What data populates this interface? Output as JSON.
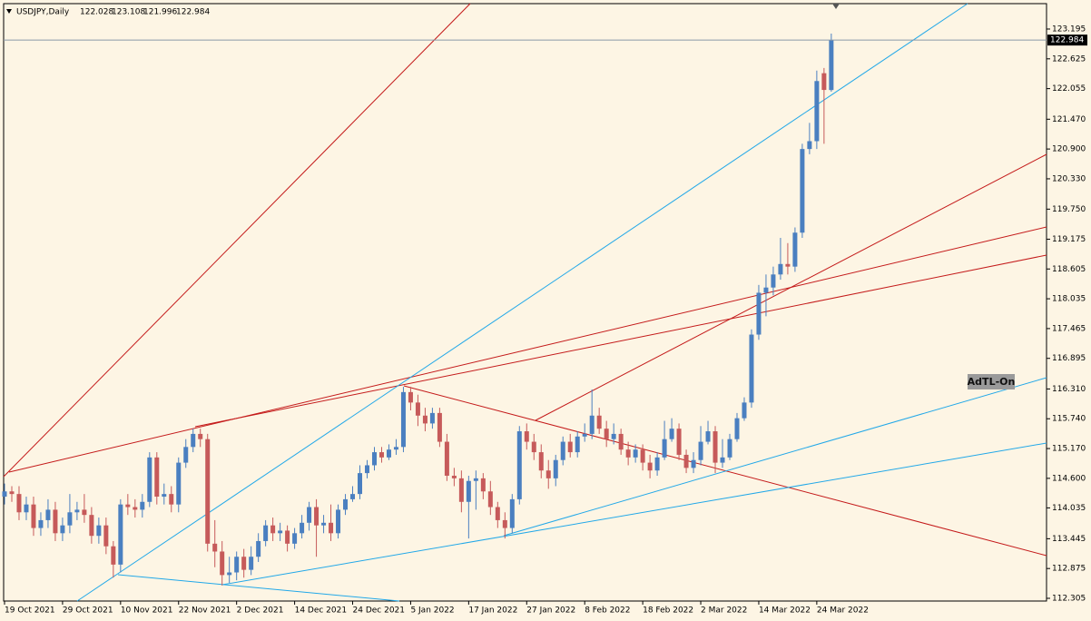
{
  "chart_data": {
    "type": "candlestick",
    "title": "USDJPY,Daily",
    "header_ohlc": [
      122.028,
      123.108,
      121.996,
      122.984
    ],
    "current_price": 122.984,
    "annotation": "AdTL-On",
    "up_color": "#4a7fc0",
    "down_color": "#c65a5a",
    "ylim": [
      112.253,
      123.681
    ],
    "yticks": [
      {
        "value": 123.195,
        "label": "123.195"
      },
      {
        "value": 122.625,
        "label": "122.625"
      },
      {
        "value": 122.055,
        "label": "122.055"
      },
      {
        "value": 121.47,
        "label": "121.470"
      },
      {
        "value": 120.9,
        "label": "120.900"
      },
      {
        "value": 120.33,
        "label": "120.330"
      },
      {
        "value": 119.75,
        "label": "119.750"
      },
      {
        "value": 119.175,
        "label": "119.175"
      },
      {
        "value": 118.605,
        "label": "118.605"
      },
      {
        "value": 118.035,
        "label": "118.035"
      },
      {
        "value": 117.465,
        "label": "117.465"
      },
      {
        "value": 116.895,
        "label": "116.895"
      },
      {
        "value": 116.31,
        "label": "116.310"
      },
      {
        "value": 115.74,
        "label": "115.740"
      },
      {
        "value": 115.17,
        "label": "115.170"
      },
      {
        "value": 114.6,
        "label": "114.600"
      },
      {
        "value": 114.035,
        "label": "114.035"
      },
      {
        "value": 113.445,
        "label": "113.445"
      },
      {
        "value": 112.875,
        "label": "112.875"
      },
      {
        "value": 112.305,
        "label": "112.305"
      }
    ],
    "categories": [
      "19 Oct 2021",
      null,
      null,
      null,
      null,
      null,
      null,
      null,
      "29 Oct 2021",
      null,
      null,
      null,
      null,
      null,
      null,
      null,
      "10 Nov 2021",
      null,
      null,
      null,
      null,
      null,
      null,
      null,
      "22 Nov 2021",
      null,
      null,
      null,
      null,
      null,
      null,
      null,
      "2 Dec 2021",
      null,
      null,
      null,
      null,
      null,
      null,
      null,
      "14 Dec 2021",
      null,
      null,
      null,
      null,
      null,
      null,
      null,
      "24 Dec 2021",
      null,
      null,
      null,
      null,
      null,
      null,
      null,
      "5 Jan 2022",
      null,
      null,
      null,
      null,
      null,
      null,
      null,
      "17 Jan 2022",
      null,
      null,
      null,
      null,
      null,
      null,
      null,
      "27 Jan 2022",
      null,
      null,
      null,
      null,
      null,
      null,
      null,
      "8 Feb 2022",
      null,
      null,
      null,
      null,
      null,
      null,
      null,
      "18 Feb 2022",
      null,
      null,
      null,
      null,
      null,
      null,
      null,
      "2 Mar 2022",
      null,
      null,
      null,
      null,
      null,
      null,
      null,
      "14 Mar 2022",
      null,
      null,
      null,
      null,
      null,
      null,
      null,
      "24 Mar 2022",
      null,
      null
    ],
    "open": [
      114.25,
      114.35,
      114.3,
      113.95,
      114.1,
      113.65,
      113.8,
      114.0,
      113.55,
      113.7,
      113.95,
      114.0,
      113.9,
      113.5,
      113.7,
      113.3,
      112.95,
      114.1,
      114.05,
      114.0,
      114.15,
      115.0,
      114.25,
      114.3,
      114.1,
      114.9,
      115.2,
      115.45,
      115.35,
      113.35,
      113.2,
      112.75,
      112.8,
      113.1,
      112.85,
      113.1,
      113.4,
      113.7,
      113.55,
      113.6,
      113.35,
      113.55,
      113.75,
      114.05,
      113.7,
      113.75,
      113.55,
      114.0,
      114.2,
      114.3,
      114.7,
      114.85,
      115.1,
      115.0,
      115.15,
      115.2,
      116.25,
      116.05,
      115.8,
      115.65,
      115.85,
      115.3,
      114.65,
      114.6,
      114.15,
      114.55,
      114.6,
      114.35,
      114.05,
      113.8,
      113.65,
      114.2,
      115.5,
      115.3,
      115.1,
      114.75,
      114.6,
      114.95,
      115.3,
      115.1,
      115.4,
      115.45,
      115.8,
      115.55,
      115.35,
      115.45,
      115.15,
      115.0,
      115.15,
      114.9,
      114.75,
      115.0,
      115.35,
      115.55,
      115.05,
      114.8,
      114.95,
      115.3,
      115.5,
      114.9,
      115.0,
      115.35,
      115.75,
      116.05,
      117.35,
      118.15,
      118.25,
      118.5,
      118.7,
      118.65,
      119.3,
      120.9,
      121.05,
      122.35,
      122.028
    ],
    "high": [
      114.5,
      114.45,
      114.45,
      114.25,
      114.25,
      113.95,
      114.2,
      114.15,
      113.85,
      114.3,
      114.15,
      114.3,
      114.05,
      113.85,
      113.85,
      113.4,
      114.2,
      114.3,
      114.2,
      114.3,
      115.1,
      115.1,
      114.5,
      114.45,
      115.0,
      115.35,
      115.55,
      115.55,
      115.45,
      113.8,
      113.4,
      113.1,
      113.2,
      113.25,
      113.3,
      113.55,
      113.8,
      113.85,
      113.75,
      113.7,
      113.65,
      113.9,
      114.15,
      114.2,
      113.9,
      114.1,
      114.1,
      114.3,
      114.45,
      114.85,
      114.95,
      115.2,
      115.2,
      115.25,
      115.35,
      116.35,
      116.35,
      116.2,
      115.95,
      115.95,
      115.95,
      115.45,
      114.8,
      114.75,
      114.65,
      114.75,
      114.7,
      114.55,
      114.15,
      113.95,
      114.3,
      115.6,
      115.65,
      115.45,
      115.25,
      114.95,
      115.05,
      115.4,
      115.45,
      115.5,
      115.65,
      116.3,
      115.95,
      115.7,
      115.65,
      115.55,
      115.3,
      115.25,
      115.25,
      115.05,
      115.1,
      115.7,
      115.75,
      115.65,
      115.15,
      115.1,
      115.6,
      115.7,
      115.6,
      115.35,
      115.45,
      115.85,
      116.15,
      117.45,
      118.3,
      118.5,
      118.65,
      119.2,
      119.1,
      119.4,
      121.0,
      121.4,
      122.4,
      122.45,
      123.108
    ],
    "low": [
      114.1,
      114.15,
      113.8,
      113.8,
      113.5,
      113.5,
      113.65,
      113.4,
      113.4,
      113.55,
      113.8,
      113.75,
      113.35,
      113.35,
      113.15,
      112.7,
      112.8,
      113.9,
      113.85,
      113.85,
      114.05,
      114.1,
      114.1,
      113.95,
      113.95,
      114.8,
      115.1,
      115.2,
      113.2,
      112.9,
      112.55,
      112.6,
      112.65,
      112.7,
      112.75,
      113.0,
      113.3,
      113.4,
      113.4,
      113.2,
      113.25,
      113.45,
      113.6,
      113.1,
      113.55,
      113.4,
      113.45,
      113.9,
      114.15,
      114.2,
      114.6,
      114.75,
      114.9,
      114.95,
      115.05,
      115.1,
      115.9,
      115.6,
      115.5,
      115.55,
      115.2,
      114.55,
      114.45,
      113.95,
      113.45,
      114.0,
      114.2,
      113.9,
      113.65,
      113.45,
      113.55,
      114.1,
      115.15,
      114.95,
      114.6,
      114.4,
      114.45,
      114.85,
      115.0,
      115.0,
      115.3,
      115.35,
      115.45,
      115.2,
      115.25,
      115.05,
      114.85,
      114.9,
      114.75,
      114.6,
      114.65,
      114.95,
      115.3,
      114.95,
      114.7,
      114.7,
      114.85,
      115.25,
      114.7,
      114.8,
      114.95,
      115.3,
      115.7,
      115.95,
      117.25,
      117.7,
      118.1,
      118.4,
      118.5,
      118.55,
      119.2,
      120.8,
      120.9,
      121.0,
      121.996
    ],
    "close": [
      114.35,
      114.3,
      113.95,
      114.1,
      113.65,
      113.8,
      114.0,
      113.55,
      113.7,
      113.95,
      114.0,
      113.9,
      113.5,
      113.7,
      113.3,
      112.95,
      114.1,
      114.05,
      114.0,
      114.15,
      115.0,
      114.25,
      114.3,
      114.1,
      114.9,
      115.2,
      115.45,
      115.35,
      113.35,
      113.2,
      112.75,
      112.8,
      113.1,
      112.85,
      113.1,
      113.4,
      113.7,
      113.55,
      113.6,
      113.35,
      113.55,
      113.75,
      114.05,
      113.7,
      113.75,
      113.55,
      114.0,
      114.2,
      114.3,
      114.7,
      114.85,
      115.1,
      115.0,
      115.15,
      115.2,
      116.25,
      116.05,
      115.8,
      115.65,
      115.85,
      115.3,
      114.65,
      114.6,
      114.15,
      114.55,
      114.6,
      114.35,
      114.05,
      113.8,
      113.65,
      114.2,
      115.5,
      115.3,
      115.1,
      114.75,
      114.6,
      114.95,
      115.3,
      115.1,
      115.4,
      115.45,
      115.8,
      115.55,
      115.35,
      115.45,
      115.15,
      115.0,
      115.15,
      114.9,
      114.75,
      115.0,
      115.35,
      115.55,
      115.05,
      114.8,
      114.95,
      115.3,
      115.5,
      114.9,
      115.0,
      115.35,
      115.75,
      116.05,
      117.35,
      118.15,
      118.25,
      118.5,
      118.7,
      118.65,
      119.3,
      120.9,
      121.05,
      122.2,
      122.03,
      122.984
    ]
  }
}
